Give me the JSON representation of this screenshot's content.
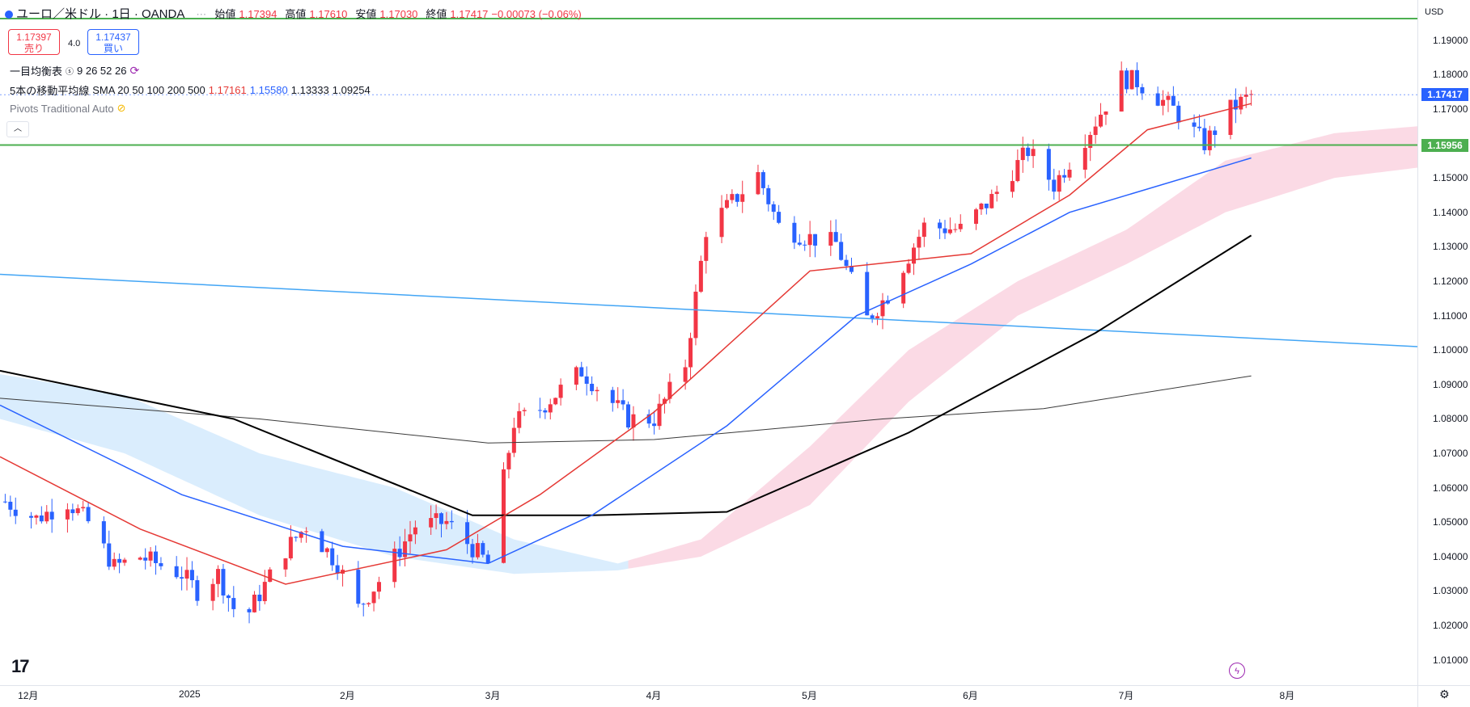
{
  "symbol": {
    "title": "ユーロ／米ドル · 1日 · OANDA"
  },
  "ohlc": {
    "open_label": "始値",
    "open": "1.17394",
    "high_label": "高値",
    "high": "1.17610",
    "low_label": "安値",
    "low": "1.17030",
    "close_label": "終値",
    "close": "1.17417",
    "change": "−0.00073 (−0.06%)"
  },
  "trade": {
    "sell_price": "1.17397",
    "sell_label": "売り",
    "buy_price": "1.17437",
    "buy_label": "買い",
    "spread": "4.0"
  },
  "indicators": {
    "ichimoku_label": "一目均衡表",
    "ichimoku_params": "9 26 52 26",
    "sma_label": "5本の移動平均線",
    "sma_params": "SMA 20 50 100 200 500",
    "sma_v1": "1.17161",
    "sma_v2": "1.15580",
    "sma_v3": "1.13333",
    "sma_v4": "1.09254",
    "pivots_label": "Pivots Traditional Auto"
  },
  "axis": {
    "currency": "USD",
    "y_ticks": [
      "1.19000",
      "1.18000",
      "1.17000",
      "1.16000",
      "1.15000",
      "1.14000",
      "1.13000",
      "1.12000",
      "1.11000",
      "1.10000",
      "1.09000",
      "1.08000",
      "1.07000",
      "1.06000",
      "1.05000",
      "1.04000",
      "1.03000",
      "1.02000",
      "1.01000"
    ],
    "x_ticks": [
      "12月",
      "2025",
      "2月",
      "3月",
      "4月",
      "5月",
      "6月",
      "7月",
      "8月"
    ],
    "last_price": "1.17417",
    "hline_price": "1.15956"
  },
  "colors": {
    "up": "#f23645",
    "down": "#2962ff",
    "sma20": "#e53935",
    "sma50": "#2962ff",
    "sma200": "#000000",
    "sma500": "#3a3a3a",
    "hline": "#4caf50",
    "trend": "#42a5f5"
  },
  "icons": {
    "logo": "tradingview-logo-icon",
    "lightning": "lightning-icon",
    "settings": "gear-icon",
    "collapse": "chevron-up-icon"
  },
  "chart_data": {
    "type": "candlestick",
    "title": "ユーロ／米ドル · 1日 · OANDA",
    "ylim": [
      1.005,
      1.197
    ],
    "x_range": [
      "2024-11-26",
      "2025-08-26"
    ],
    "grid": false,
    "close_points": [
      [
        "2024-11-27",
        1.056
      ],
      [
        "2024-12-03",
        1.051
      ],
      [
        "2024-12-09",
        1.056
      ],
      [
        "2024-12-13",
        1.05
      ],
      [
        "2024-12-18",
        1.037
      ],
      [
        "2024-12-23",
        1.04
      ],
      [
        "2024-12-31",
        1.035
      ],
      [
        "2025-01-03",
        1.03
      ],
      [
        "2025-01-07",
        1.035
      ],
      [
        "2025-01-10",
        1.025
      ],
      [
        "2025-01-13",
        1.024
      ],
      [
        "2025-01-20",
        1.042
      ],
      [
        "2025-01-24",
        1.049
      ],
      [
        "2025-01-30",
        1.038
      ],
      [
        "2025-02-03",
        1.025
      ],
      [
        "2025-02-07",
        1.033
      ],
      [
        "2025-02-14",
        1.049
      ],
      [
        "2025-02-20",
        1.05
      ],
      [
        "2025-02-28",
        1.038
      ],
      [
        "2025-03-05",
        1.079
      ],
      [
        "2025-03-10",
        1.083
      ],
      [
        "2025-03-18",
        1.094
      ],
      [
        "2025-03-27",
        1.08
      ],
      [
        "2025-04-01",
        1.08
      ],
      [
        "2025-04-07",
        1.096
      ],
      [
        "2025-04-11",
        1.135
      ],
      [
        "2025-04-21",
        1.151
      ],
      [
        "2025-04-25",
        1.136
      ],
      [
        "2025-04-30",
        1.133
      ],
      [
        "2025-05-06",
        1.131
      ],
      [
        "2025-05-12",
        1.109
      ],
      [
        "2025-05-16",
        1.116
      ],
      [
        "2025-05-23",
        1.136
      ],
      [
        "2025-05-30",
        1.135
      ],
      [
        "2025-06-05",
        1.144
      ],
      [
        "2025-06-12",
        1.158
      ],
      [
        "2025-06-17",
        1.148
      ],
      [
        "2025-06-24",
        1.164
      ],
      [
        "2025-06-30",
        1.179
      ],
      [
        "2025-07-03",
        1.178
      ],
      [
        "2025-07-10",
        1.17
      ],
      [
        "2025-07-16",
        1.16
      ],
      [
        "2025-07-21",
        1.17
      ],
      [
        "2025-07-25",
        1.174
      ]
    ],
    "sma20": [
      [
        "2024-11-26",
        1.069
      ],
      [
        "2024-12-23",
        1.048
      ],
      [
        "2025-01-20",
        1.032
      ],
      [
        "2025-02-20",
        1.042
      ],
      [
        "2025-03-10",
        1.058
      ],
      [
        "2025-04-01",
        1.082
      ],
      [
        "2025-05-01",
        1.123
      ],
      [
        "2025-06-01",
        1.128
      ],
      [
        "2025-06-20",
        1.145
      ],
      [
        "2025-07-05",
        1.164
      ],
      [
        "2025-07-25",
        1.1716
      ]
    ],
    "sma50": [
      [
        "2024-11-26",
        1.084
      ],
      [
        "2024-12-31",
        1.058
      ],
      [
        "2025-01-31",
        1.043
      ],
      [
        "2025-02-28",
        1.038
      ],
      [
        "2025-03-20",
        1.052
      ],
      [
        "2025-04-15",
        1.078
      ],
      [
        "2025-05-10",
        1.11
      ],
      [
        "2025-06-01",
        1.125
      ],
      [
        "2025-06-20",
        1.14
      ],
      [
        "2025-07-25",
        1.1558
      ]
    ],
    "sma200": [
      [
        "2024-11-26",
        1.094
      ],
      [
        "2025-01-10",
        1.08
      ],
      [
        "2025-02-25",
        1.052
      ],
      [
        "2025-03-20",
        1.052
      ],
      [
        "2025-04-15",
        1.053
      ],
      [
        "2025-05-20",
        1.076
      ],
      [
        "2025-06-25",
        1.105
      ],
      [
        "2025-07-25",
        1.1333
      ]
    ],
    "sma500": [
      [
        "2024-11-26",
        1.086
      ],
      [
        "2025-01-15",
        1.08
      ],
      [
        "2025-02-28",
        1.073
      ],
      [
        "2025-04-01",
        1.074
      ],
      [
        "2025-05-15",
        1.08
      ],
      [
        "2025-06-15",
        1.083
      ],
      [
        "2025-07-25",
        1.0925
      ]
    ],
    "trendline": [
      [
        "2024-11-26",
        1.122
      ],
      [
        "2025-08-26",
        1.101
      ]
    ],
    "hlines": [
      1.1963,
      1.15956
    ],
    "cloud_upper": [
      [
        "2024-11-26",
        1.093
      ],
      [
        "2024-12-20",
        1.087
      ],
      [
        "2025-01-15",
        1.07
      ],
      [
        "2025-02-10",
        1.06
      ],
      [
        "2025-03-05",
        1.045
      ],
      [
        "2025-03-25",
        1.038
      ],
      [
        "2025-04-10",
        1.045
      ],
      [
        "2025-05-01",
        1.072
      ],
      [
        "2025-05-20",
        1.1
      ],
      [
        "2025-06-10",
        1.12
      ],
      [
        "2025-07-01",
        1.135
      ],
      [
        "2025-07-20",
        1.155
      ],
      [
        "2025-08-10",
        1.163
      ],
      [
        "2025-08-26",
        1.165
      ]
    ],
    "cloud_lower": [
      [
        "2024-11-26",
        1.08
      ],
      [
        "2024-12-20",
        1.07
      ],
      [
        "2025-01-15",
        1.052
      ],
      [
        "2025-02-10",
        1.04
      ],
      [
        "2025-03-05",
        1.035
      ],
      [
        "2025-03-25",
        1.036
      ],
      [
        "2025-04-10",
        1.04
      ],
      [
        "2025-05-01",
        1.055
      ],
      [
        "2025-05-20",
        1.085
      ],
      [
        "2025-06-10",
        1.11
      ],
      [
        "2025-07-01",
        1.125
      ],
      [
        "2025-07-20",
        1.14
      ],
      [
        "2025-08-10",
        1.15
      ],
      [
        "2025-08-26",
        1.153
      ]
    ],
    "cloud_split_date": "2025-03-27"
  }
}
